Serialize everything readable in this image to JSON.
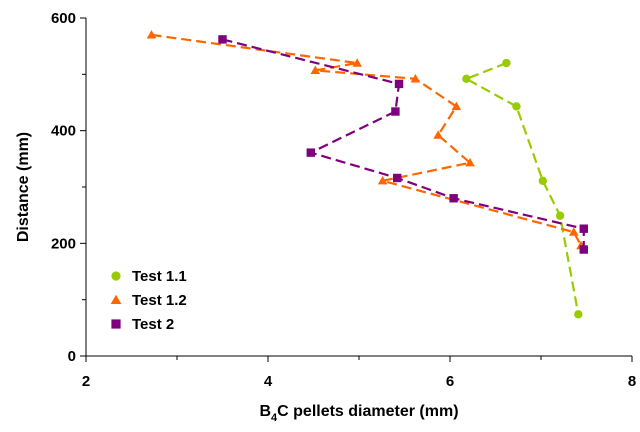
{
  "chart_data": {
    "type": "scatter",
    "title": "",
    "xlabel_main": "B",
    "xlabel_sub": "4",
    "xlabel_rest": "C pellets diameter (mm)",
    "ylabel": "Distance (mm)",
    "xlim": [
      2,
      8
    ],
    "ylim": [
      0,
      600
    ],
    "x_ticks": [
      "2",
      "4",
      "6",
      "8"
    ],
    "y_ticks": [
      "0",
      "200",
      "400",
      "600"
    ],
    "x_tick_values": [
      2,
      4,
      6,
      8
    ],
    "y_tick_values": [
      0,
      200,
      400,
      600
    ],
    "grid": false,
    "legend_position": "bottom-left",
    "series": [
      {
        "name": "Test 1.1",
        "marker": "circle",
        "color": "#99CC00",
        "x": [
          6.62,
          6.18,
          6.73,
          7.02,
          7.21,
          7.41
        ],
        "y": [
          520,
          492,
          443,
          311,
          249,
          74
        ]
      },
      {
        "name": "Test 1.2",
        "marker": "triangle",
        "color": "#FF6600",
        "x": [
          2.72,
          4.98,
          4.52,
          5.62,
          6.07,
          5.87,
          6.22,
          5.26,
          7.36,
          7.44
        ],
        "y": [
          570,
          520,
          507,
          492,
          443,
          392,
          343,
          311,
          220,
          196
        ]
      },
      {
        "name": "Test 2",
        "marker": "square",
        "color": "#7F007F",
        "x": [
          3.5,
          5.44,
          5.4,
          4.47,
          5.42,
          6.04,
          7.47,
          7.47
        ],
        "y": [
          562,
          483,
          434,
          361,
          316,
          280,
          226,
          189
        ]
      }
    ]
  }
}
